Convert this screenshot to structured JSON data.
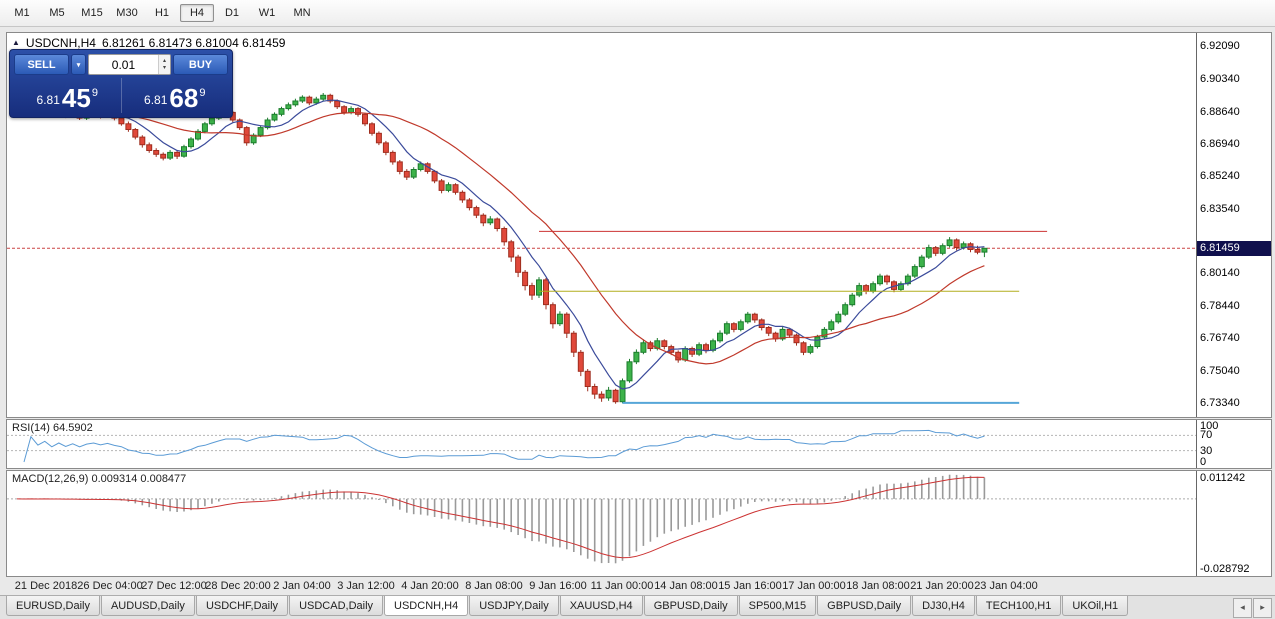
{
  "toolbar": {
    "timeframes": [
      "M1",
      "M5",
      "M15",
      "M30",
      "H1",
      "H4",
      "D1",
      "W1",
      "MN"
    ],
    "selected": "H4"
  },
  "chart": {
    "title_symbol": "USDCNH,H4",
    "ohlc": "6.81261 6.81473 6.81004 6.81459"
  },
  "trade_panel": {
    "sell_label": "SELL",
    "buy_label": "BUY",
    "volume": "0.01",
    "sell_price": {
      "prefix": "6.81",
      "big": "45",
      "sup": "9"
    },
    "buy_price": {
      "prefix": "6.81",
      "big": "68",
      "sup": "9"
    }
  },
  "price_scale": {
    "labels": [
      "6.92090",
      "6.90340",
      "6.88640",
      "6.86940",
      "6.85240",
      "6.83540",
      "6.80140",
      "6.78440",
      "6.76740",
      "6.75040",
      "6.73340"
    ],
    "current": "6.81459"
  },
  "indicators": {
    "rsi": {
      "label": "RSI(14) 64.5902",
      "scale": [
        "100",
        "70",
        "30",
        "0"
      ],
      "levels": [
        70,
        30
      ]
    },
    "macd": {
      "label": "MACD(12,26,9) 0.009314 0.008477",
      "scale_top": "0.011242",
      "scale_bottom": "-0.028792"
    }
  },
  "time_axis": [
    "21 Dec 2018",
    "26 Dec 04:00",
    "27 Dec 12:00",
    "28 Dec 20:00",
    "2 Jan 04:00",
    "3 Jan 12:00",
    "4 Jan 20:00",
    "8 Jan 08:00",
    "9 Jan 16:00",
    "11 Jan 00:00",
    "14 Jan 08:00",
    "15 Jan 16:00",
    "17 Jan 00:00",
    "18 Jan 08:00",
    "21 Jan 20:00",
    "23 Jan 04:00"
  ],
  "tabs": {
    "items": [
      "EURUSD,Daily",
      "AUDUSD,Daily",
      "USDCHF,Daily",
      "USDCAD,Daily",
      "USDCNH,H4",
      "USDJPY,Daily",
      "XAUUSD,H4",
      "GBPUSD,Daily",
      "SP500,M15",
      "GBPUSD,Daily",
      "DJ30,H4",
      "TECH100,H1",
      "UKOil,H1"
    ],
    "selected": "USDCNH,H4"
  },
  "chart_data": {
    "type": "candlestick",
    "symbol": "USDCNH",
    "timeframe": "H4",
    "ylim": [
      6.726,
      6.9277
    ],
    "current_price": 6.81459,
    "candles": [
      [
        6.885,
        6.887,
        6.884,
        6.886
      ],
      [
        6.886,
        6.8872,
        6.8838,
        6.885
      ],
      [
        6.885,
        6.888,
        6.8842,
        6.887
      ],
      [
        6.887,
        6.8878,
        6.8845,
        6.8855
      ],
      [
        6.8855,
        6.8875,
        6.8848,
        6.8865
      ],
      [
        6.8865,
        6.8872,
        6.8835,
        6.8845
      ],
      [
        6.8845,
        6.887,
        6.8838,
        6.886
      ],
      [
        6.886,
        6.8868,
        6.883,
        6.884
      ],
      [
        6.884,
        6.8865,
        6.8832,
        6.8855
      ],
      [
        6.8855,
        6.8862,
        6.882,
        6.883
      ],
      [
        6.883,
        6.8862,
        6.882,
        6.885
      ],
      [
        6.885,
        6.8875,
        6.8842,
        6.886
      ],
      [
        6.886,
        6.8868,
        6.8828,
        6.884
      ],
      [
        6.884,
        6.8866,
        6.8832,
        6.8855
      ],
      [
        6.8855,
        6.8862,
        6.8818,
        6.883
      ],
      [
        6.883,
        6.8838,
        6.879,
        6.88
      ],
      [
        6.88,
        6.8812,
        6.8758,
        6.877
      ],
      [
        6.877,
        6.8778,
        6.8718,
        6.873
      ],
      [
        6.873,
        6.874,
        6.8675,
        6.869
      ],
      [
        6.869,
        6.8702,
        6.8648,
        6.866
      ],
      [
        6.866,
        6.8672,
        6.8626,
        6.864
      ],
      [
        6.864,
        6.865,
        6.8608,
        6.862
      ],
      [
        6.862,
        6.8662,
        6.861,
        6.865
      ],
      [
        6.865,
        6.8658,
        6.8615,
        6.863
      ],
      [
        6.863,
        6.869,
        6.8622,
        6.868
      ],
      [
        6.868,
        6.873,
        6.867,
        6.872
      ],
      [
        6.872,
        6.8772,
        6.8712,
        6.876
      ],
      [
        6.876,
        6.881,
        6.875,
        6.88
      ],
      [
        6.88,
        6.884,
        6.879,
        6.883
      ],
      [
        6.883,
        6.8862,
        6.882,
        6.885
      ],
      [
        6.885,
        6.8872,
        6.884,
        6.886
      ],
      [
        6.886,
        6.8868,
        6.8808,
        6.882
      ],
      [
        6.882,
        6.8828,
        6.8768,
        6.878
      ],
      [
        6.878,
        6.8788,
        6.8685,
        6.87
      ],
      [
        6.87,
        6.875,
        6.869,
        6.874
      ],
      [
        6.874,
        6.879,
        6.873,
        6.878
      ],
      [
        6.878,
        6.8832,
        6.877,
        6.882
      ],
      [
        6.882,
        6.886,
        6.8812,
        6.885
      ],
      [
        6.885,
        6.889,
        6.884,
        6.888
      ],
      [
        6.888,
        6.8912,
        6.887,
        6.89
      ],
      [
        6.89,
        6.8932,
        6.889,
        6.892
      ],
      [
        6.892,
        6.895,
        6.891,
        6.894
      ],
      [
        6.894,
        6.8948,
        6.8898,
        6.891
      ],
      [
        6.891,
        6.8942,
        6.89,
        6.893
      ],
      [
        6.893,
        6.8962,
        6.892,
        6.895
      ],
      [
        6.895,
        6.8958,
        6.8908,
        6.892
      ],
      [
        6.892,
        6.8928,
        6.8878,
        6.889
      ],
      [
        6.889,
        6.8898,
        6.8848,
        6.886
      ],
      [
        6.886,
        6.8892,
        6.885,
        6.888
      ],
      [
        6.888,
        6.8888,
        6.8838,
        6.885
      ],
      [
        6.885,
        6.8858,
        6.8788,
        6.88
      ],
      [
        6.88,
        6.8808,
        6.8738,
        6.875
      ],
      [
        6.875,
        6.876,
        6.8688,
        6.87
      ],
      [
        6.87,
        6.871,
        6.8635,
        6.865
      ],
      [
        6.865,
        6.866,
        6.8585,
        6.86
      ],
      [
        6.86,
        6.861,
        6.8535,
        6.855
      ],
      [
        6.855,
        6.8562,
        6.8505,
        6.852
      ],
      [
        6.852,
        6.8572,
        6.851,
        6.856
      ],
      [
        6.856,
        6.8602,
        6.855,
        6.859
      ],
      [
        6.859,
        6.8598,
        6.8538,
        6.855
      ],
      [
        6.855,
        6.8558,
        6.8488,
        6.85
      ],
      [
        6.85,
        6.851,
        6.8435,
        6.845
      ],
      [
        6.845,
        6.8492,
        6.844,
        6.848
      ],
      [
        6.848,
        6.8488,
        6.8428,
        6.844
      ],
      [
        6.844,
        6.845,
        6.8385,
        6.84
      ],
      [
        6.84,
        6.841,
        6.8345,
        6.836
      ],
      [
        6.836,
        6.837,
        6.8305,
        6.832
      ],
      [
        6.832,
        6.833,
        6.8262,
        6.828
      ],
      [
        6.828,
        6.8315,
        6.8268,
        6.83
      ],
      [
        6.83,
        6.8308,
        6.8235,
        6.825
      ],
      [
        6.825,
        6.826,
        6.816,
        6.818
      ],
      [
        6.818,
        6.819,
        6.8075,
        6.81
      ],
      [
        6.81,
        6.8112,
        6.7995,
        6.802
      ],
      [
        6.802,
        6.8032,
        6.7925,
        6.795
      ],
      [
        6.795,
        6.7965,
        6.7875,
        6.79
      ],
      [
        6.79,
        6.7995,
        6.7885,
        6.798
      ],
      [
        6.798,
        6.799,
        6.7825,
        6.785
      ],
      [
        6.785,
        6.7862,
        6.7725,
        6.775
      ],
      [
        6.775,
        6.7815,
        6.7738,
        6.78
      ],
      [
        6.78,
        6.781,
        6.7675,
        6.77
      ],
      [
        6.77,
        6.7712,
        6.7575,
        6.76
      ],
      [
        6.76,
        6.7612,
        6.7475,
        6.75
      ],
      [
        6.75,
        6.7512,
        6.7395,
        6.742
      ],
      [
        6.742,
        6.7435,
        6.7355,
        6.738
      ],
      [
        6.738,
        6.7395,
        6.734,
        6.736
      ],
      [
        6.736,
        6.7418,
        6.7345,
        6.74
      ],
      [
        6.74,
        6.7408,
        6.733,
        6.734
      ],
      [
        6.734,
        6.7462,
        6.7332,
        6.745
      ],
      [
        6.745,
        6.7565,
        6.744,
        6.755
      ],
      [
        6.755,
        6.7615,
        6.7538,
        6.76
      ],
      [
        6.76,
        6.7668,
        6.759,
        6.765
      ],
      [
        6.765,
        6.766,
        6.7605,
        6.762
      ],
      [
        6.762,
        6.7675,
        6.761,
        6.766
      ],
      [
        6.766,
        6.7668,
        6.7615,
        6.763
      ],
      [
        6.763,
        6.764,
        6.7585,
        6.76
      ],
      [
        6.76,
        6.761,
        6.7545,
        6.756
      ],
      [
        6.756,
        6.7632,
        6.755,
        6.762
      ],
      [
        6.762,
        6.763,
        6.7575,
        6.759
      ],
      [
        6.759,
        6.7652,
        6.758,
        6.764
      ],
      [
        6.764,
        6.765,
        6.7595,
        6.761
      ],
      [
        6.761,
        6.7672,
        6.76,
        6.766
      ],
      [
        6.766,
        6.7715,
        6.765,
        6.77
      ],
      [
        6.77,
        6.7762,
        6.769,
        6.775
      ],
      [
        6.775,
        6.7758,
        6.7705,
        6.772
      ],
      [
        6.772,
        6.7772,
        6.771,
        6.776
      ],
      [
        6.776,
        6.7812,
        6.775,
        6.78
      ],
      [
        6.78,
        6.7808,
        6.7755,
        6.777
      ],
      [
        6.777,
        6.7778,
        6.7715,
        6.773
      ],
      [
        6.773,
        6.7738,
        6.7685,
        6.77
      ],
      [
        6.77,
        6.7708,
        6.7655,
        6.767
      ],
      [
        6.767,
        6.7732,
        6.766,
        6.772
      ],
      [
        6.772,
        6.7728,
        6.7675,
        6.769
      ],
      [
        6.769,
        6.7698,
        6.7635,
        6.765
      ],
      [
        6.765,
        6.7658,
        6.7585,
        6.76
      ],
      [
        6.76,
        6.7642,
        6.759,
        6.763
      ],
      [
        6.763,
        6.7692,
        6.762,
        6.768
      ],
      [
        6.768,
        6.7732,
        6.767,
        6.772
      ],
      [
        6.772,
        6.7772,
        6.771,
        6.776
      ],
      [
        6.776,
        6.7815,
        6.775,
        6.78
      ],
      [
        6.78,
        6.7862,
        6.779,
        6.785
      ],
      [
        6.785,
        6.7912,
        6.784,
        6.79
      ],
      [
        6.79,
        6.7965,
        6.789,
        6.795
      ],
      [
        6.795,
        6.7958,
        6.7905,
        6.792
      ],
      [
        6.792,
        6.7972,
        6.791,
        6.796
      ],
      [
        6.796,
        6.8012,
        6.795,
        6.8
      ],
      [
        6.8,
        6.8008,
        6.7955,
        6.797
      ],
      [
        6.797,
        6.7978,
        6.7915,
        6.793
      ],
      [
        6.793,
        6.7972,
        6.792,
        6.796
      ],
      [
        6.796,
        6.8012,
        6.795,
        6.8
      ],
      [
        6.8,
        6.8062,
        6.799,
        6.805
      ],
      [
        6.805,
        6.8112,
        6.804,
        6.81
      ],
      [
        6.81,
        6.8165,
        6.809,
        6.815
      ],
      [
        6.815,
        6.8158,
        6.8105,
        6.812
      ],
      [
        6.812,
        6.8172,
        6.811,
        6.816
      ],
      [
        6.816,
        6.8205,
        6.815,
        6.819
      ],
      [
        6.819,
        6.8198,
        6.8135,
        6.815
      ],
      [
        6.815,
        6.8182,
        6.814,
        6.817
      ],
      [
        6.817,
        6.8178,
        6.8125,
        6.814
      ],
      [
        6.814,
        6.816,
        6.8115,
        6.8126
      ],
      [
        6.8126,
        6.8147,
        6.81,
        6.8146
      ]
    ],
    "overlays": {
      "ma_fast": {
        "type": "sma",
        "period": 7,
        "color": "#3b4b9b"
      },
      "ma_slow": {
        "type": "sma",
        "period": 20,
        "color": "#c0392b"
      }
    },
    "hlines": [
      {
        "price": 6.8235,
        "from_bar": 75,
        "to_bar": 148,
        "color": "#cc3333",
        "width": 1
      },
      {
        "price": 6.792,
        "from_bar": 75,
        "to_bar": 144,
        "color": "#b2ae1f",
        "width": 1
      },
      {
        "price": 6.7334,
        "from_bar": 87,
        "to_bar": 144,
        "color": "#56a6d8",
        "width": 2
      }
    ],
    "rsi": {
      "period": 14,
      "value": 64.5902,
      "levels": [
        70,
        30
      ],
      "range": [
        0,
        100
      ],
      "color": "#5b9bd5"
    },
    "macd": {
      "fast": 12,
      "slow": 26,
      "signal": 9,
      "value": 0.009314,
      "signal_value": 0.008477,
      "ymax": 0.0125,
      "ymin": -0.0345,
      "hist_color": "#9a9a9a",
      "signal_color": "#cc3333"
    }
  }
}
